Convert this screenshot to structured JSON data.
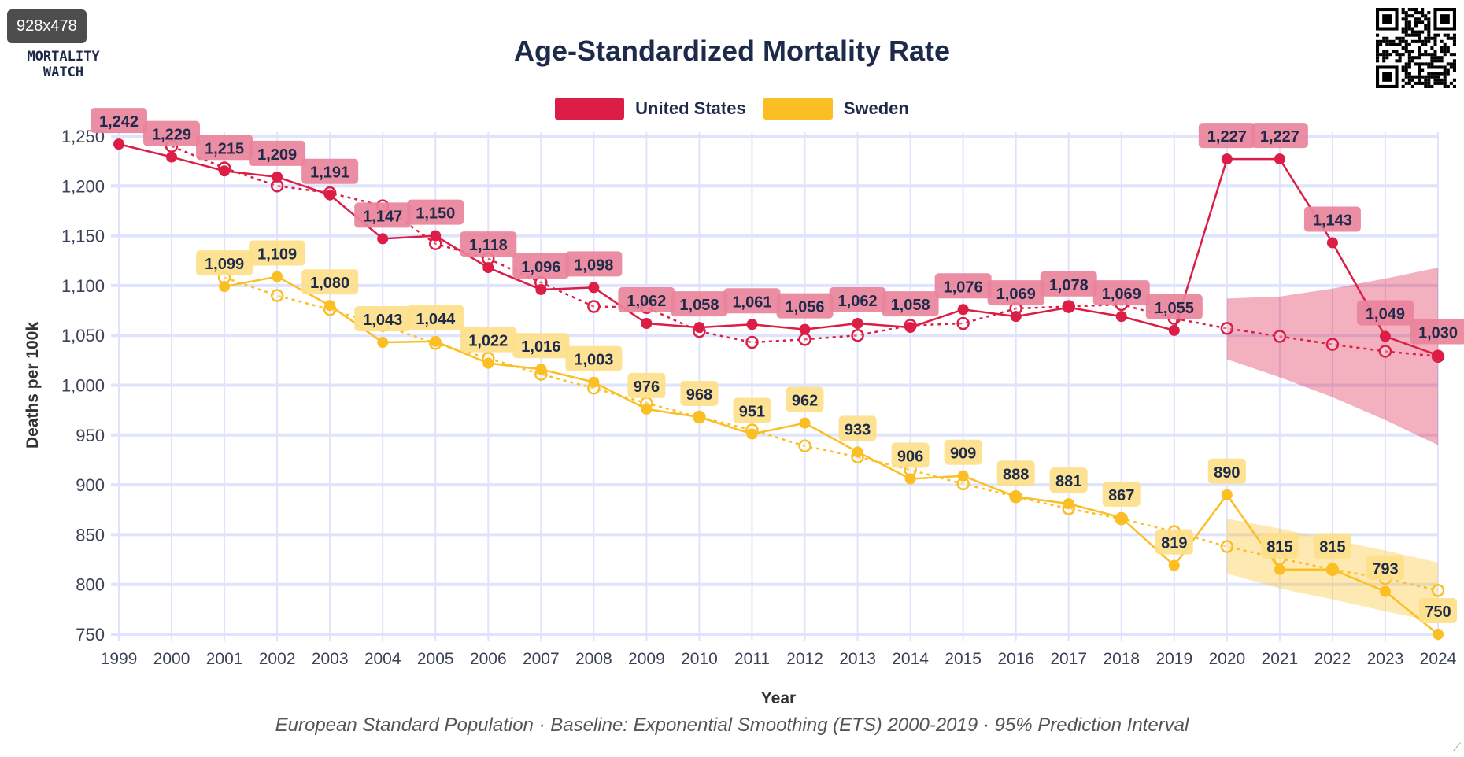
{
  "overlay_badge": "928x478",
  "logo": {
    "line1": "MORTALITY",
    "line2": "WATCH"
  },
  "chart_data": {
    "type": "line",
    "title": "Age-Standardized Mortality Rate",
    "xlabel": "Year",
    "ylabel": "Deaths per 100k",
    "caption": "European Standard Population · Baseline: Exponential Smoothing (ETS) 2000-2019 · 95% Prediction Interval",
    "ylim": [
      750,
      1250
    ],
    "yticks": [
      "750",
      "800",
      "850",
      "900",
      "950",
      "1,000",
      "1,050",
      "1,100",
      "1,150",
      "1,200",
      "1,250"
    ],
    "ytick_values": [
      750,
      800,
      850,
      900,
      950,
      1000,
      1050,
      1100,
      1150,
      1200,
      1250
    ],
    "x": [
      1999,
      2000,
      2001,
      2002,
      2003,
      2004,
      2005,
      2006,
      2007,
      2008,
      2009,
      2010,
      2011,
      2012,
      2013,
      2014,
      2015,
      2016,
      2017,
      2018,
      2019,
      2020,
      2021,
      2022,
      2023,
      2024
    ],
    "grid": true,
    "legend_position": "top-center",
    "series": [
      {
        "name": "United States",
        "color": "#dc1e46",
        "label_bg": "#e9839b",
        "values": [
          1242,
          1229,
          1215,
          1209,
          1191,
          1147,
          1150,
          1118,
          1096,
          1098,
          1062,
          1058,
          1061,
          1056,
          1062,
          1058,
          1076,
          1069,
          1078,
          1069,
          1055,
          1227,
          1227,
          1143,
          1049,
          1030
        ],
        "labels": [
          "1,242",
          "1,229",
          "1,215",
          "1,209",
          "1,191",
          "1,147",
          "1,150",
          "1,118",
          "1,096",
          "1,098",
          "1,062",
          "1,058",
          "1,061",
          "1,056",
          "1,062",
          "1,058",
          "1,076",
          "1,069",
          "1,078",
          "1,069",
          "1,055",
          "1,227",
          "1,227",
          "1,143",
          "1,049",
          "1,030"
        ],
        "baseline": [
          null,
          1240,
          1218,
          1200,
          1193,
          1180,
          1142,
          1127,
          1103,
          1079,
          1078,
          1054,
          1043,
          1046,
          1050,
          1060,
          1062,
          1077,
          1079,
          1081,
          1067,
          1057,
          1049,
          1041,
          1034,
          1029
        ],
        "pi_upper": [
          null,
          null,
          null,
          null,
          null,
          null,
          null,
          null,
          null,
          null,
          null,
          null,
          null,
          null,
          null,
          null,
          null,
          null,
          null,
          null,
          null,
          1087,
          1089,
          1097,
          1107,
          1118
        ],
        "pi_lower": [
          null,
          null,
          null,
          null,
          null,
          null,
          null,
          null,
          null,
          null,
          null,
          null,
          null,
          null,
          null,
          null,
          null,
          null,
          null,
          null,
          null,
          1026,
          1008,
          988,
          965,
          940
        ]
      },
      {
        "name": "Sweden",
        "color": "#fbbf24",
        "label_bg": "#fde08a",
        "values": [
          null,
          null,
          1099,
          1109,
          1080,
          1043,
          1044,
          1022,
          1016,
          1003,
          976,
          968,
          951,
          962,
          933,
          906,
          909,
          888,
          881,
          867,
          819,
          890,
          815,
          815,
          793,
          750
        ],
        "labels": [
          null,
          null,
          "1,099",
          "1,109",
          "1,080",
          "1,043",
          "1,044",
          "1,022",
          "1,016",
          "1,003",
          "976",
          "968",
          "951",
          "962",
          "933",
          "906",
          "909",
          "888",
          "881",
          "867",
          "819",
          "890",
          "815",
          "815",
          "793",
          "750"
        ],
        "baseline": [
          null,
          null,
          1108,
          1090,
          1076,
          1060,
          1042,
          1027,
          1011,
          997,
          982,
          968,
          955,
          939,
          928,
          915,
          901,
          888,
          876,
          866,
          853,
          838,
          826,
          815,
          806,
          794
        ],
        "pi_upper": [
          null,
          null,
          null,
          null,
          null,
          null,
          null,
          null,
          null,
          null,
          null,
          null,
          null,
          null,
          null,
          null,
          null,
          null,
          null,
          null,
          null,
          866,
          856,
          845,
          834,
          822
        ],
        "pi_lower": [
          null,
          null,
          null,
          null,
          null,
          null,
          null,
          null,
          null,
          null,
          null,
          null,
          null,
          null,
          null,
          null,
          null,
          null,
          null,
          null,
          null,
          811,
          796,
          785,
          773,
          762
        ]
      }
    ]
  }
}
